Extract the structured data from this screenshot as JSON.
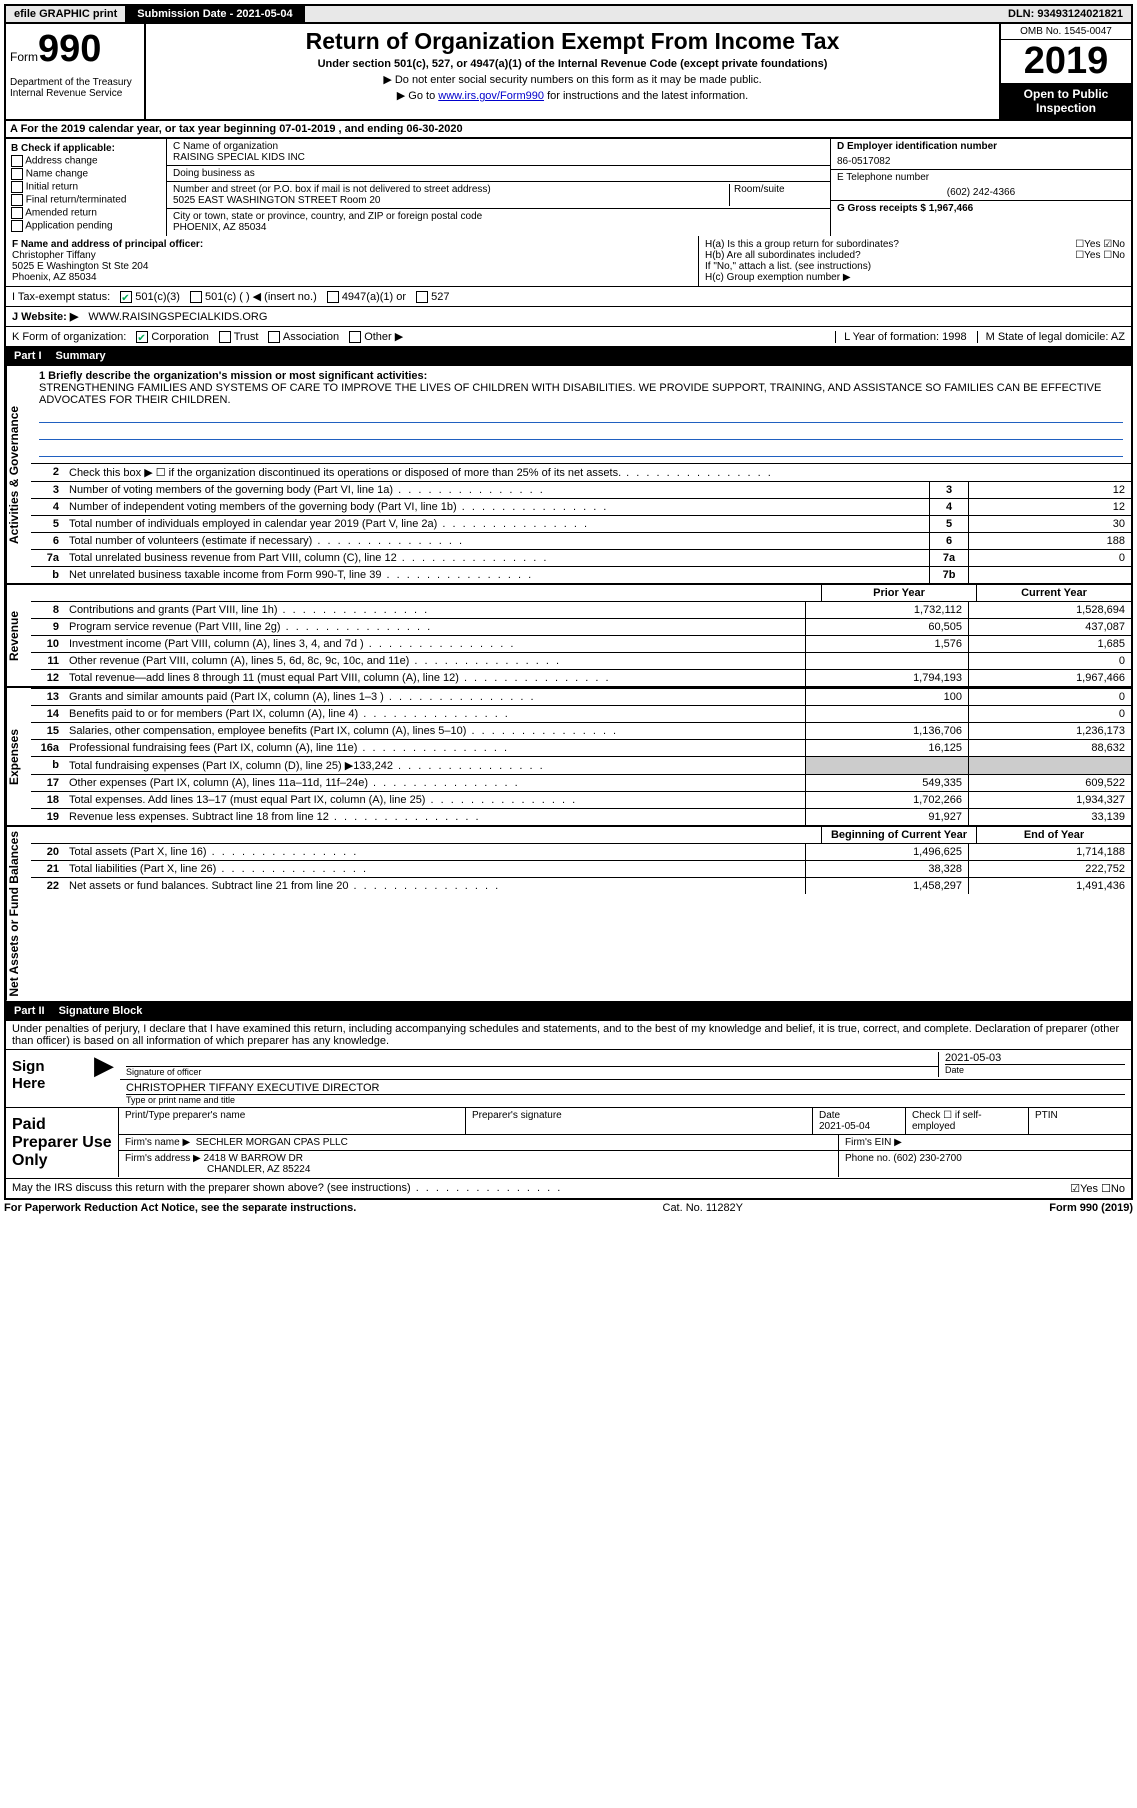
{
  "topbar": {
    "efile": "efile GRAPHIC print",
    "subdate_label": "Submission Date - 2021-05-04",
    "dln": "DLN: 93493124021821"
  },
  "header": {
    "form_word": "Form",
    "form_num": "990",
    "dept": "Department of the Treasury\nInternal Revenue Service",
    "title": "Return of Organization Exempt From Income Tax",
    "subtitle": "Under section 501(c), 527, or 4947(a)(1) of the Internal Revenue Code (except private foundations)",
    "instr1": "▶ Do not enter social security numbers on this form as it may be made public.",
    "instr2_pre": "▶ Go to ",
    "instr2_link": "www.irs.gov/Form990",
    "instr2_post": " for instructions and the latest information.",
    "omb": "OMB No. 1545-0047",
    "year": "2019",
    "inspection": "Open to Public Inspection"
  },
  "rowA": "A For the 2019 calendar year, or tax year beginning 07-01-2019     , and ending 06-30-2020",
  "colB": {
    "label": "B Check if applicable:",
    "opts": [
      "Address change",
      "Name change",
      "Initial return",
      "Final return/terminated",
      "Amended return",
      "Application pending"
    ]
  },
  "colC": {
    "name_label": "C Name of organization",
    "name": "RAISING SPECIAL KIDS INC",
    "dba_label": "Doing business as",
    "dba": "",
    "addr_label": "Number and street (or P.O. box if mail is not delivered to street address)",
    "room_label": "Room/suite",
    "addr": "5025 EAST WASHINGTON STREET Room 20",
    "city_label": "City or town, state or province, country, and ZIP or foreign postal code",
    "city": "PHOENIX, AZ  85034"
  },
  "colD": {
    "ein_label": "D Employer identification number",
    "ein": "86-0517082",
    "tel_label": "E Telephone number",
    "tel": "(602) 242-4366",
    "gross_label": "G Gross receipts $ 1,967,466"
  },
  "rowF": {
    "label": "F  Name and address of principal officer:",
    "name": "Christopher Tiffany",
    "addr1": "5025 E Washington St Ste 204",
    "addr2": "Phoenix, AZ  85034",
    "ha": "H(a)  Is this a group return for subordinates?",
    "ha_ans": "☐Yes  ☑No",
    "hb": "H(b)  Are all subordinates included?",
    "hb_ans": "☐Yes  ☐No",
    "hb_note": "If \"No,\" attach a list. (see instructions)",
    "hc": "H(c)  Group exemption number ▶"
  },
  "taxrow": {
    "label": "I    Tax-exempt status:",
    "c3": "501(c)(3)",
    "c": "501(c) (  ) ◀ (insert no.)",
    "a1": "4947(a)(1) or",
    "s527": "527"
  },
  "website": {
    "label": "J   Website: ▶",
    "val": "WWW.RAISINGSPECIALKIDS.ORG"
  },
  "korg": {
    "label": "K Form of organization:",
    "corp": "Corporation",
    "trust": "Trust",
    "assoc": "Association",
    "other": "Other ▶",
    "year_label": "L Year of formation: 1998",
    "state_label": "M State of legal domicile: AZ"
  },
  "part1": {
    "label": "Part I",
    "title": "Summary"
  },
  "mission": {
    "label": "1  Briefly describe the organization's mission or most significant activities:",
    "text": "STRENGTHENING FAMILIES AND SYSTEMS OF CARE TO IMPROVE THE LIVES OF CHILDREN WITH DISABILITIES. WE PROVIDE SUPPORT, TRAINING, AND ASSISTANCE SO FAMILIES CAN BE EFFECTIVE ADVOCATES FOR THEIR CHILDREN."
  },
  "lines_ag": [
    {
      "n": "2",
      "t": "Check this box ▶ ☐  if the organization discontinued its operations or disposed of more than 25% of its net assets.",
      "box": "",
      "v": ""
    },
    {
      "n": "3",
      "t": "Number of voting members of the governing body (Part VI, line 1a)",
      "box": "3",
      "v": "12"
    },
    {
      "n": "4",
      "t": "Number of independent voting members of the governing body (Part VI, line 1b)",
      "box": "4",
      "v": "12"
    },
    {
      "n": "5",
      "t": "Total number of individuals employed in calendar year 2019 (Part V, line 2a)",
      "box": "5",
      "v": "30"
    },
    {
      "n": "6",
      "t": "Total number of volunteers (estimate if necessary)",
      "box": "6",
      "v": "188"
    },
    {
      "n": "7a",
      "t": "Total unrelated business revenue from Part VIII, column (C), line 12",
      "box": "7a",
      "v": "0"
    },
    {
      "n": "b",
      "t": "Net unrelated business taxable income from Form 990-T, line 39",
      "box": "7b",
      "v": ""
    }
  ],
  "col_headers": {
    "prior": "Prior Year",
    "current": "Current Year"
  },
  "lines_rev": [
    {
      "n": "8",
      "t": "Contributions and grants (Part VIII, line 1h)",
      "p": "1,732,112",
      "c": "1,528,694"
    },
    {
      "n": "9",
      "t": "Program service revenue (Part VIII, line 2g)",
      "p": "60,505",
      "c": "437,087"
    },
    {
      "n": "10",
      "t": "Investment income (Part VIII, column (A), lines 3, 4, and 7d )",
      "p": "1,576",
      "c": "1,685"
    },
    {
      "n": "11",
      "t": "Other revenue (Part VIII, column (A), lines 5, 6d, 8c, 9c, 10c, and 11e)",
      "p": "",
      "c": "0"
    },
    {
      "n": "12",
      "t": "Total revenue—add lines 8 through 11 (must equal Part VIII, column (A), line 12)",
      "p": "1,794,193",
      "c": "1,967,466"
    }
  ],
  "lines_exp": [
    {
      "n": "13",
      "t": "Grants and similar amounts paid (Part IX, column (A), lines 1–3 )",
      "p": "100",
      "c": "0"
    },
    {
      "n": "14",
      "t": "Benefits paid to or for members (Part IX, column (A), line 4)",
      "p": "",
      "c": "0"
    },
    {
      "n": "15",
      "t": "Salaries, other compensation, employee benefits (Part IX, column (A), lines 5–10)",
      "p": "1,136,706",
      "c": "1,236,173"
    },
    {
      "n": "16a",
      "t": "Professional fundraising fees (Part IX, column (A), line 11e)",
      "p": "16,125",
      "c": "88,632"
    },
    {
      "n": "b",
      "t": "Total fundraising expenses (Part IX, column (D), line 25) ▶133,242",
      "p": "shaded",
      "c": "shaded"
    },
    {
      "n": "17",
      "t": "Other expenses (Part IX, column (A), lines 11a–11d, 11f–24e)",
      "p": "549,335",
      "c": "609,522"
    },
    {
      "n": "18",
      "t": "Total expenses. Add lines 13–17 (must equal Part IX, column (A), line 25)",
      "p": "1,702,266",
      "c": "1,934,327"
    },
    {
      "n": "19",
      "t": "Revenue less expenses. Subtract line 18 from line 12",
      "p": "91,927",
      "c": "33,139"
    }
  ],
  "col_headers2": {
    "begin": "Beginning of Current Year",
    "end": "End of Year"
  },
  "lines_net": [
    {
      "n": "20",
      "t": "Total assets (Part X, line 16)",
      "p": "1,496,625",
      "c": "1,714,188"
    },
    {
      "n": "21",
      "t": "Total liabilities (Part X, line 26)",
      "p": "38,328",
      "c": "222,752"
    },
    {
      "n": "22",
      "t": "Net assets or fund balances. Subtract line 21 from line 20",
      "p": "1,458,297",
      "c": "1,491,436"
    }
  ],
  "part2": {
    "label": "Part II",
    "title": "Signature Block"
  },
  "sig": {
    "perjury": "Under penalties of perjury, I declare that I have examined this return, including accompanying schedules and statements, and to the best of my knowledge and belief, it is true, correct, and complete. Declaration of preparer (other than officer) is based on all information of which preparer has any knowledge.",
    "sign_here": "Sign Here",
    "sig_officer": "Signature of officer",
    "date": "2021-05-03",
    "date_label": "Date",
    "name_title": "CHRISTOPHER TIFFANY  EXECUTIVE DIRECTOR",
    "name_title_label": "Type or print name and title",
    "paid": "Paid Preparer Use Only",
    "prep_name_label": "Print/Type preparer's name",
    "prep_sig_label": "Preparer's signature",
    "prep_date_label": "Date",
    "prep_date": "2021-05-04",
    "check_self": "Check ☐ if self-employed",
    "ptin": "PTIN",
    "firm_name_label": "Firm's name    ▶",
    "firm_name": "SECHLER MORGAN CPAS PLLC",
    "firm_ein": "Firm's EIN ▶",
    "firm_addr_label": "Firm's address ▶",
    "firm_addr1": "2418 W BARROW DR",
    "firm_addr2": "CHANDLER, AZ  85224",
    "firm_phone": "Phone no. (602) 230-2700",
    "discuss": "May the IRS discuss this return with the preparer shown above? (see instructions)",
    "discuss_ans": "☑Yes  ☐No"
  },
  "footer": {
    "left": "For Paperwork Reduction Act Notice, see the separate instructions.",
    "mid": "Cat. No. 11282Y",
    "right": "Form 990 (2019)"
  },
  "vtabs": {
    "ag": "Activities & Governance",
    "rev": "Revenue",
    "exp": "Expenses",
    "net": "Net Assets or Fund Balances"
  }
}
